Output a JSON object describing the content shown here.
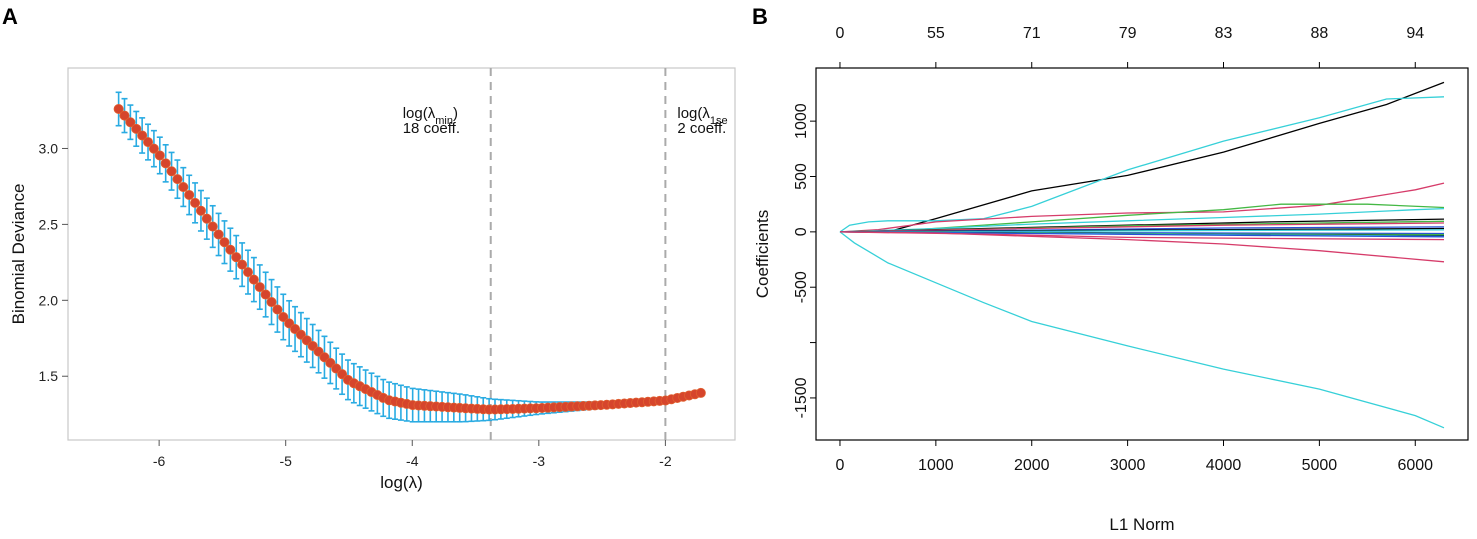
{
  "panels": {
    "A": {
      "letter": "A"
    },
    "B": {
      "letter": "B"
    }
  },
  "colors": {
    "errorbar": "#29abe2",
    "point_fill": "#d6452c",
    "point_edge": "#e06030",
    "frame_a": "#c8c8c8",
    "vline": "#aaaaaa",
    "frame_b": "#000000",
    "line_black": "#000000",
    "line_cyan": "#36d0d8",
    "line_green": "#44b844",
    "line_pink": "#d63c6a",
    "line_blue": "#2850d8"
  },
  "chart_data": [
    {
      "id": "cv_deviance",
      "type": "scatter",
      "title": "",
      "xlabel": "log(λ)",
      "ylabel": "Binomial Deviance",
      "xlim": [
        -6.72,
        -1.45
      ],
      "ylim": [
        1.08,
        3.53
      ],
      "xticks": [
        -6,
        -5,
        -4,
        -3,
        -2
      ],
      "xtick_labels": [
        "-6",
        "-5",
        "-4",
        "-3",
        "-2"
      ],
      "yticks": [
        1.5,
        2.0,
        2.5,
        3.0
      ],
      "ytick_labels": [
        "1.5",
        "2.0",
        "2.5",
        "3.0"
      ],
      "grid": false,
      "x_start": -6.32,
      "x_end": -1.72,
      "n_points": 100,
      "curve_knots": [
        {
          "x": -6.32,
          "y": 3.26,
          "err": 0.11
        },
        {
          "x": -6.0,
          "y": 2.96,
          "err": 0.12
        },
        {
          "x": -5.5,
          "y": 2.4,
          "err": 0.14
        },
        {
          "x": -5.0,
          "y": 1.87,
          "err": 0.15
        },
        {
          "x": -4.5,
          "y": 1.47,
          "err": 0.13
        },
        {
          "x": -4.2,
          "y": 1.345,
          "err": 0.12
        },
        {
          "x": -4.0,
          "y": 1.31,
          "err": 0.11
        },
        {
          "x": -3.6,
          "y": 1.29,
          "err": 0.09
        },
        {
          "x": -3.38,
          "y": 1.28,
          "err": 0.07
        },
        {
          "x": -3.0,
          "y": 1.29,
          "err": 0.04
        },
        {
          "x": -2.5,
          "y": 1.31,
          "err": 0.02
        },
        {
          "x": -2.0,
          "y": 1.34,
          "err": 0.015
        },
        {
          "x": -1.72,
          "y": 1.39,
          "err": 0.015
        }
      ],
      "vlines": [
        {
          "x": -3.38,
          "label_line1": "log(λ",
          "label_sub": "min",
          "label_close": ")",
          "label_line2": "18 coeff."
        },
        {
          "x": -2.0,
          "label_line1": "log(λ",
          "label_sub": "1se",
          "label_close": "",
          "label_line2": "2 coeff."
        }
      ]
    },
    {
      "id": "coef_path",
      "type": "line",
      "title": "",
      "xlabel": "L1 Norm",
      "ylabel": "Coefficients",
      "xlim": [
        -250,
        6550
      ],
      "ylim": [
        -1880,
        1480
      ],
      "xticks": [
        0,
        1000,
        2000,
        3000,
        4000,
        5000,
        6000
      ],
      "xtick_labels": [
        "0",
        "1000",
        "2000",
        "3000",
        "4000",
        "5000",
        "6000"
      ],
      "yticks": [
        -1500,
        -1000,
        -500,
        0,
        500,
        1000
      ],
      "ytick_labels": [
        "-1500",
        "",
        "-500",
        "0",
        "500",
        "1000"
      ],
      "top_axis": {
        "positions": [
          0,
          1000,
          2000,
          3000,
          4000,
          5000,
          6000
        ],
        "labels": [
          "0",
          "55",
          "71",
          "79",
          "83",
          "88",
          "94"
        ]
      },
      "grid": false,
      "series": [
        {
          "name": "black-main",
          "color": "#000000",
          "x": [
            0,
            500,
            1000,
            2000,
            3000,
            4000,
            5000,
            5700,
            6300
          ],
          "y": [
            0,
            0,
            120,
            370,
            510,
            720,
            980,
            1150,
            1350
          ]
        },
        {
          "name": "cyan-top",
          "color": "#36d0d8",
          "x": [
            0,
            100,
            300,
            500,
            1000,
            1500,
            2000,
            3000,
            4000,
            5000,
            5700,
            6300
          ],
          "y": [
            0,
            60,
            90,
            100,
            100,
            120,
            230,
            560,
            820,
            1030,
            1200,
            1220
          ]
        },
        {
          "name": "cyan-bottom",
          "color": "#36d0d8",
          "x": [
            0,
            150,
            500,
            1000,
            1500,
            2000,
            3000,
            4000,
            5000,
            6000,
            6300
          ],
          "y": [
            0,
            -100,
            -280,
            -460,
            -640,
            -810,
            -1030,
            -1240,
            -1420,
            -1660,
            -1770
          ]
        },
        {
          "name": "pink-up",
          "color": "#d63c6a",
          "x": [
            0,
            400,
            1000,
            2000,
            3000,
            4000,
            5000,
            6000,
            6300
          ],
          "y": [
            0,
            20,
            90,
            140,
            170,
            180,
            240,
            380,
            440
          ]
        },
        {
          "name": "green-1",
          "color": "#44b844",
          "x": [
            0,
            800,
            2000,
            3000,
            4000,
            4600,
            5500,
            6300
          ],
          "y": [
            0,
            20,
            90,
            150,
            200,
            250,
            250,
            220
          ]
        },
        {
          "name": "cyan-2",
          "color": "#36d0d8",
          "x": [
            0,
            1000,
            2000,
            3000,
            4000,
            5000,
            6000,
            6300
          ],
          "y": [
            0,
            30,
            70,
            100,
            130,
            160,
            200,
            210
          ]
        },
        {
          "name": "black-2",
          "color": "#000000",
          "x": [
            0,
            1500,
            3000,
            4500,
            6300
          ],
          "y": [
            0,
            30,
            60,
            90,
            115
          ]
        },
        {
          "name": "green-2",
          "color": "#44b844",
          "x": [
            0,
            1500,
            3000,
            4500,
            6300
          ],
          "y": [
            0,
            25,
            55,
            75,
            95
          ]
        },
        {
          "name": "pink-2",
          "color": "#d63c6a",
          "x": [
            0,
            2000,
            4000,
            6300
          ],
          "y": [
            0,
            30,
            60,
            80
          ]
        },
        {
          "name": "blue-1",
          "color": "#2850d8",
          "x": [
            0,
            2000,
            4000,
            6300
          ],
          "y": [
            0,
            15,
            35,
            45
          ]
        },
        {
          "name": "black-3",
          "color": "#000000",
          "x": [
            0,
            2000,
            4000,
            6300
          ],
          "y": [
            0,
            10,
            20,
            30
          ]
        },
        {
          "name": "cyan-3",
          "color": "#36d0d8",
          "x": [
            0,
            2000,
            4000,
            6300
          ],
          "y": [
            0,
            5,
            12,
            18
          ]
        },
        {
          "name": "blue-2",
          "color": "#2850d8",
          "x": [
            0,
            2000,
            4000,
            6300
          ],
          "y": [
            0,
            -5,
            -10,
            -15
          ]
        },
        {
          "name": "green-3",
          "color": "#44b844",
          "x": [
            0,
            2000,
            4000,
            6300
          ],
          "y": [
            0,
            -8,
            -20,
            -25
          ]
        },
        {
          "name": "black-4",
          "color": "#000000",
          "x": [
            0,
            2000,
            4000,
            6300
          ],
          "y": [
            0,
            -10,
            -25,
            -35
          ]
        },
        {
          "name": "cyan-4",
          "color": "#36d0d8",
          "x": [
            0,
            2000,
            4000,
            6300
          ],
          "y": [
            0,
            -12,
            -25,
            -40
          ]
        },
        {
          "name": "blue-3",
          "color": "#2850d8",
          "x": [
            0,
            2000,
            4000,
            6300
          ],
          "y": [
            0,
            -15,
            -30,
            -45
          ]
        },
        {
          "name": "pink-3",
          "color": "#d63c6a",
          "x": [
            0,
            1500,
            3000,
            4500,
            6300
          ],
          "y": [
            0,
            -20,
            -50,
            -60,
            -70
          ]
        },
        {
          "name": "pink-down",
          "color": "#d63c6a",
          "x": [
            0,
            1000,
            2000,
            3000,
            4000,
            5000,
            6300
          ],
          "y": [
            0,
            -10,
            -40,
            -70,
            -110,
            -170,
            -270
          ]
        }
      ]
    }
  ]
}
